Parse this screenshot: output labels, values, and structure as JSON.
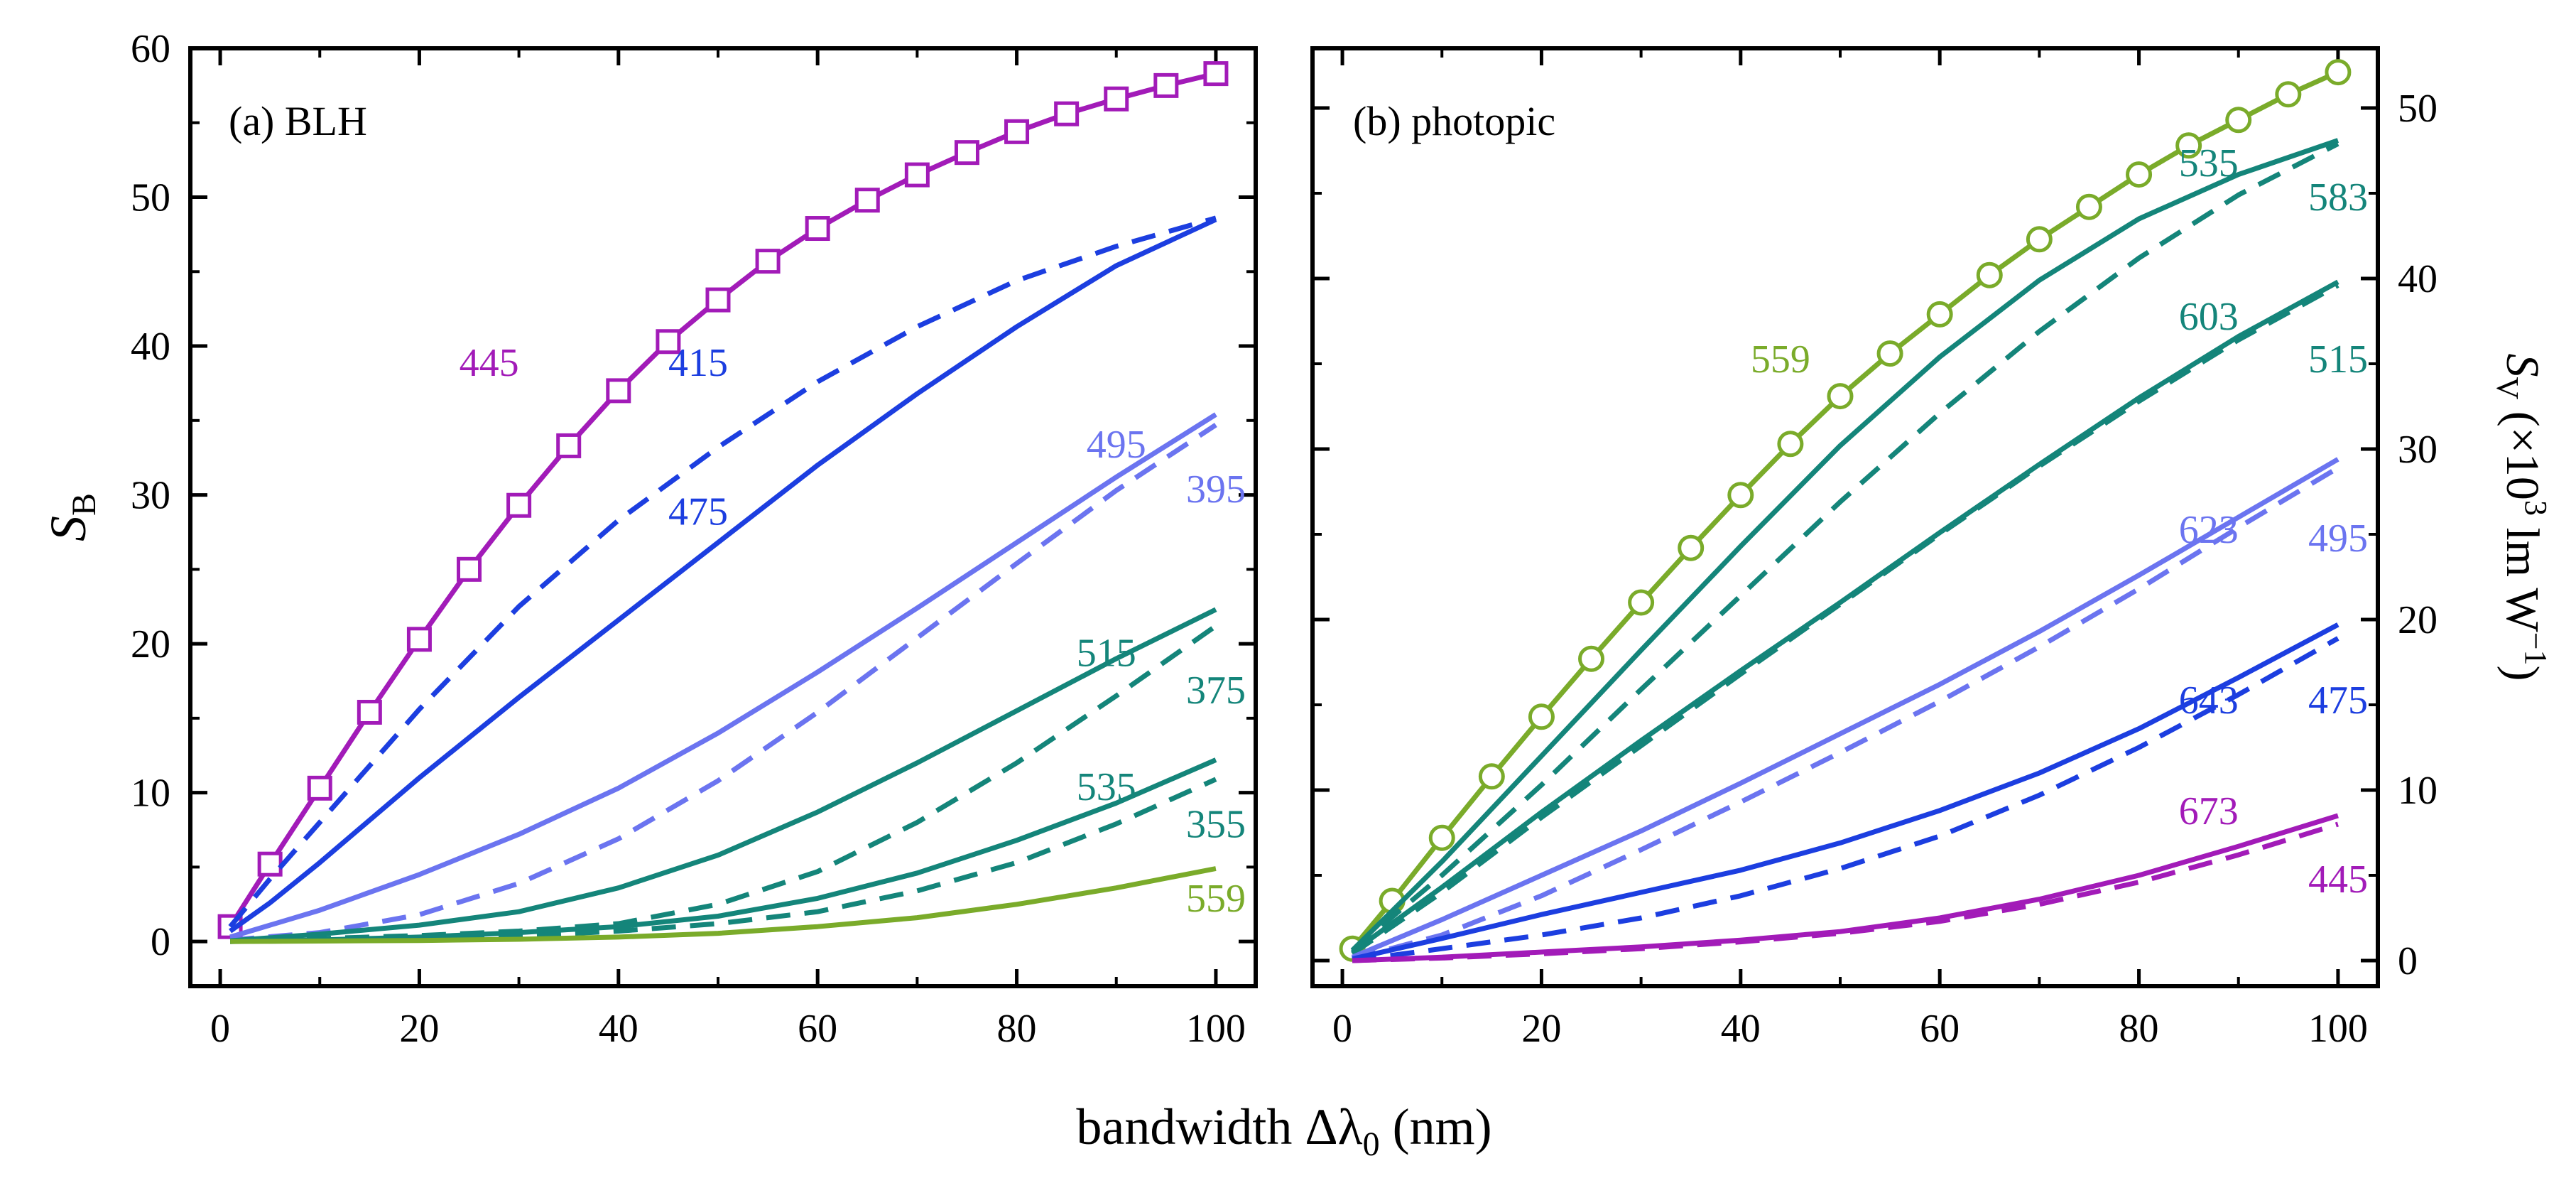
{
  "shared_xlabel": "bandwidth Δλ",
  "shared_xlabel_sub": "0",
  "shared_xlabel_unit": " (nm)",
  "chart_data": [
    {
      "type": "line",
      "title": "(a) BLH",
      "ylabel": "S",
      "ylabel_sub": "B",
      "xlim": [
        -3,
        104
      ],
      "ylim": [
        -3,
        60
      ],
      "xticks": [
        0,
        20,
        40,
        60,
        80,
        100
      ],
      "yticks": [
        0,
        10,
        20,
        30,
        40,
        50,
        60
      ],
      "series": [
        {
          "label": "445",
          "color": "#a21bb8",
          "dash": false,
          "marker": "square",
          "x": [
            1,
            5,
            10,
            15,
            20,
            25,
            30,
            35,
            40,
            45,
            50,
            55,
            60,
            65,
            70,
            75,
            80,
            85,
            90,
            95,
            100
          ],
          "y": [
            1,
            5.2,
            10.3,
            15.4,
            20.3,
            25.0,
            29.3,
            33.3,
            37.0,
            40.3,
            43.1,
            45.7,
            47.9,
            49.8,
            51.5,
            53.0,
            54.4,
            55.6,
            56.6,
            57.5,
            58.3
          ]
        },
        {
          "label": "415",
          "color": "#1c3ee0",
          "dash": true,
          "x": [
            1,
            5,
            10,
            20,
            30,
            40,
            50,
            60,
            70,
            80,
            90,
            100
          ],
          "y": [
            1,
            4.2,
            8.0,
            15.6,
            22.5,
            28.3,
            33.2,
            37.6,
            41.3,
            44.4,
            46.7,
            48.6
          ]
        },
        {
          "label": "475",
          "color": "#1c3ee0",
          "dash": false,
          "x": [
            1,
            5,
            10,
            20,
            30,
            40,
            50,
            60,
            70,
            80,
            90,
            100
          ],
          "y": [
            0.7,
            2.6,
            5.3,
            11.0,
            16.4,
            21.6,
            26.8,
            32.0,
            36.8,
            41.3,
            45.4,
            48.5
          ]
        },
        {
          "label": "495",
          "color": "#6b74f0",
          "dash": false,
          "x": [
            1,
            10,
            20,
            30,
            40,
            50,
            60,
            70,
            80,
            90,
            100
          ],
          "y": [
            0.3,
            2.1,
            4.5,
            7.2,
            10.3,
            14.0,
            18.1,
            22.4,
            26.8,
            31.2,
            35.4
          ]
        },
        {
          "label": "395",
          "color": "#6b74f0",
          "dash": true,
          "x": [
            1,
            10,
            20,
            30,
            40,
            50,
            60,
            70,
            80,
            90,
            100
          ],
          "y": [
            0.1,
            0.6,
            1.8,
            3.9,
            6.9,
            10.8,
            15.4,
            20.4,
            25.4,
            30.3,
            34.7
          ]
        },
        {
          "label": "515",
          "color": "#14857a",
          "dash": false,
          "x": [
            1,
            10,
            20,
            30,
            40,
            50,
            60,
            70,
            80,
            90,
            100
          ],
          "y": [
            0.05,
            0.5,
            1.1,
            2.0,
            3.6,
            5.8,
            8.7,
            12.0,
            15.5,
            19.0,
            22.3
          ]
        },
        {
          "label": "375",
          "color": "#14857a",
          "dash": true,
          "x": [
            1,
            10,
            20,
            30,
            40,
            50,
            60,
            70,
            80,
            90,
            100
          ],
          "y": [
            0,
            0.2,
            0.4,
            0.7,
            1.2,
            2.5,
            4.7,
            8.0,
            12.0,
            16.5,
            21.2
          ]
        },
        {
          "label": "535",
          "color": "#14857a",
          "dash": false,
          "x": [
            1,
            10,
            20,
            30,
            40,
            50,
            60,
            70,
            80,
            90,
            100
          ],
          "y": [
            0,
            0.1,
            0.3,
            0.6,
            1.0,
            1.7,
            2.9,
            4.6,
            6.8,
            9.3,
            12.2
          ]
        },
        {
          "label": "355",
          "color": "#14857a",
          "dash": true,
          "x": [
            1,
            10,
            20,
            30,
            40,
            50,
            60,
            70,
            80,
            90,
            100
          ],
          "y": [
            0,
            0.05,
            0.15,
            0.35,
            0.7,
            1.2,
            2.0,
            3.4,
            5.3,
            7.9,
            10.9
          ]
        },
        {
          "label": "559",
          "color": "#7aab2a",
          "dash": false,
          "x": [
            1,
            10,
            20,
            30,
            40,
            50,
            60,
            70,
            80,
            90,
            100
          ],
          "y": [
            0,
            0.03,
            0.07,
            0.15,
            0.3,
            0.55,
            1.0,
            1.6,
            2.5,
            3.6,
            4.9
          ]
        }
      ]
    },
    {
      "type": "line",
      "title": "(b) photopic",
      "ylabel": "S",
      "ylabel_sub": "V",
      "ylabel_unit_a": " (×10",
      "ylabel_sup": "3",
      "ylabel_unit_b": " lm W",
      "ylabel_sup2": "−1",
      "ylabel_close": ")",
      "xlim": [
        -3,
        104
      ],
      "ylim": [
        -1.5,
        53.5
      ],
      "xticks": [
        0,
        20,
        40,
        60,
        80,
        100
      ],
      "yticks": [
        0,
        10,
        20,
        30,
        40,
        50
      ],
      "series": [
        {
          "label": "559",
          "color": "#7aab2a",
          "dash": false,
          "marker": "circle",
          "x": [
            1,
            5,
            10,
            15,
            20,
            25,
            30,
            35,
            40,
            45,
            50,
            55,
            60,
            65,
            70,
            75,
            80,
            85,
            90,
            95,
            100
          ],
          "y": [
            0.7,
            3.5,
            7.2,
            10.8,
            14.3,
            17.7,
            21.0,
            24.2,
            27.3,
            30.3,
            33.1,
            35.6,
            37.9,
            40.2,
            42.3,
            44.2,
            46.1,
            47.8,
            49.3,
            50.8,
            52.1
          ]
        },
        {
          "label": "535",
          "color": "#14857a",
          "dash": true,
          "x": [
            1,
            10,
            20,
            30,
            40,
            50,
            60,
            70,
            80,
            90,
            100
          ],
          "y": [
            0.6,
            5.0,
            10.3,
            15.9,
            21.4,
            26.9,
            32.1,
            36.9,
            41.2,
            44.9,
            47.9
          ]
        },
        {
          "label": "583",
          "color": "#14857a",
          "dash": false,
          "x": [
            1,
            10,
            20,
            30,
            40,
            50,
            60,
            70,
            80,
            90,
            100
          ],
          "y": [
            0.6,
            5.8,
            12.0,
            18.2,
            24.3,
            30.2,
            35.4,
            39.9,
            43.5,
            46.1,
            48.1
          ]
        },
        {
          "label": "603",
          "color": "#14857a",
          "dash": false,
          "x": [
            1,
            10,
            20,
            30,
            40,
            50,
            60,
            70,
            80,
            90,
            100
          ],
          "y": [
            0.5,
            4.3,
            8.7,
            12.9,
            17.0,
            21.0,
            25.1,
            29.1,
            33.0,
            36.6,
            39.8
          ]
        },
        {
          "label": "515",
          "color": "#14857a",
          "dash": true,
          "x": [
            1,
            10,
            20,
            30,
            40,
            50,
            60,
            70,
            80,
            90,
            100
          ],
          "y": [
            0.4,
            4.0,
            8.4,
            12.6,
            16.8,
            20.9,
            25.0,
            29.0,
            32.8,
            36.4,
            39.6
          ]
        },
        {
          "label": "623",
          "color": "#6b74f0",
          "dash": false,
          "x": [
            1,
            10,
            20,
            30,
            40,
            50,
            60,
            70,
            80,
            90,
            100
          ],
          "y": [
            0.2,
            2.4,
            5.0,
            7.6,
            10.4,
            13.3,
            16.2,
            19.3,
            22.6,
            26.0,
            29.4
          ]
        },
        {
          "label": "495",
          "color": "#6b74f0",
          "dash": true,
          "x": [
            1,
            10,
            20,
            30,
            40,
            50,
            60,
            70,
            80,
            90,
            100
          ],
          "y": [
            0.1,
            1.5,
            3.8,
            6.5,
            9.3,
            12.2,
            15.2,
            18.4,
            21.8,
            25.4,
            28.9
          ]
        },
        {
          "label": "643",
          "color": "#1c3ee0",
          "dash": false,
          "x": [
            1,
            10,
            20,
            30,
            40,
            50,
            60,
            70,
            80,
            90,
            100
          ],
          "y": [
            0.1,
            1.3,
            2.7,
            4.0,
            5.3,
            6.9,
            8.8,
            11.0,
            13.6,
            16.6,
            19.7
          ]
        },
        {
          "label": "475",
          "color": "#1c3ee0",
          "dash": true,
          "x": [
            1,
            10,
            20,
            30,
            40,
            50,
            60,
            70,
            80,
            90,
            100
          ],
          "y": [
            0,
            0.7,
            1.5,
            2.5,
            3.8,
            5.4,
            7.3,
            9.7,
            12.5,
            15.6,
            18.9
          ]
        },
        {
          "label": "673",
          "color": "#a21bb8",
          "dash": false,
          "x": [
            1,
            10,
            20,
            30,
            40,
            50,
            60,
            70,
            80,
            90,
            100
          ],
          "y": [
            0,
            0.2,
            0.5,
            0.8,
            1.2,
            1.7,
            2.5,
            3.6,
            5.0,
            6.7,
            8.5
          ]
        },
        {
          "label": "445",
          "color": "#a21bb8",
          "dash": true,
          "x": [
            1,
            10,
            20,
            30,
            40,
            50,
            60,
            70,
            80,
            90,
            100
          ],
          "y": [
            0,
            0.15,
            0.4,
            0.7,
            1.1,
            1.6,
            2.3,
            3.3,
            4.6,
            6.2,
            8.0
          ]
        }
      ]
    }
  ]
}
